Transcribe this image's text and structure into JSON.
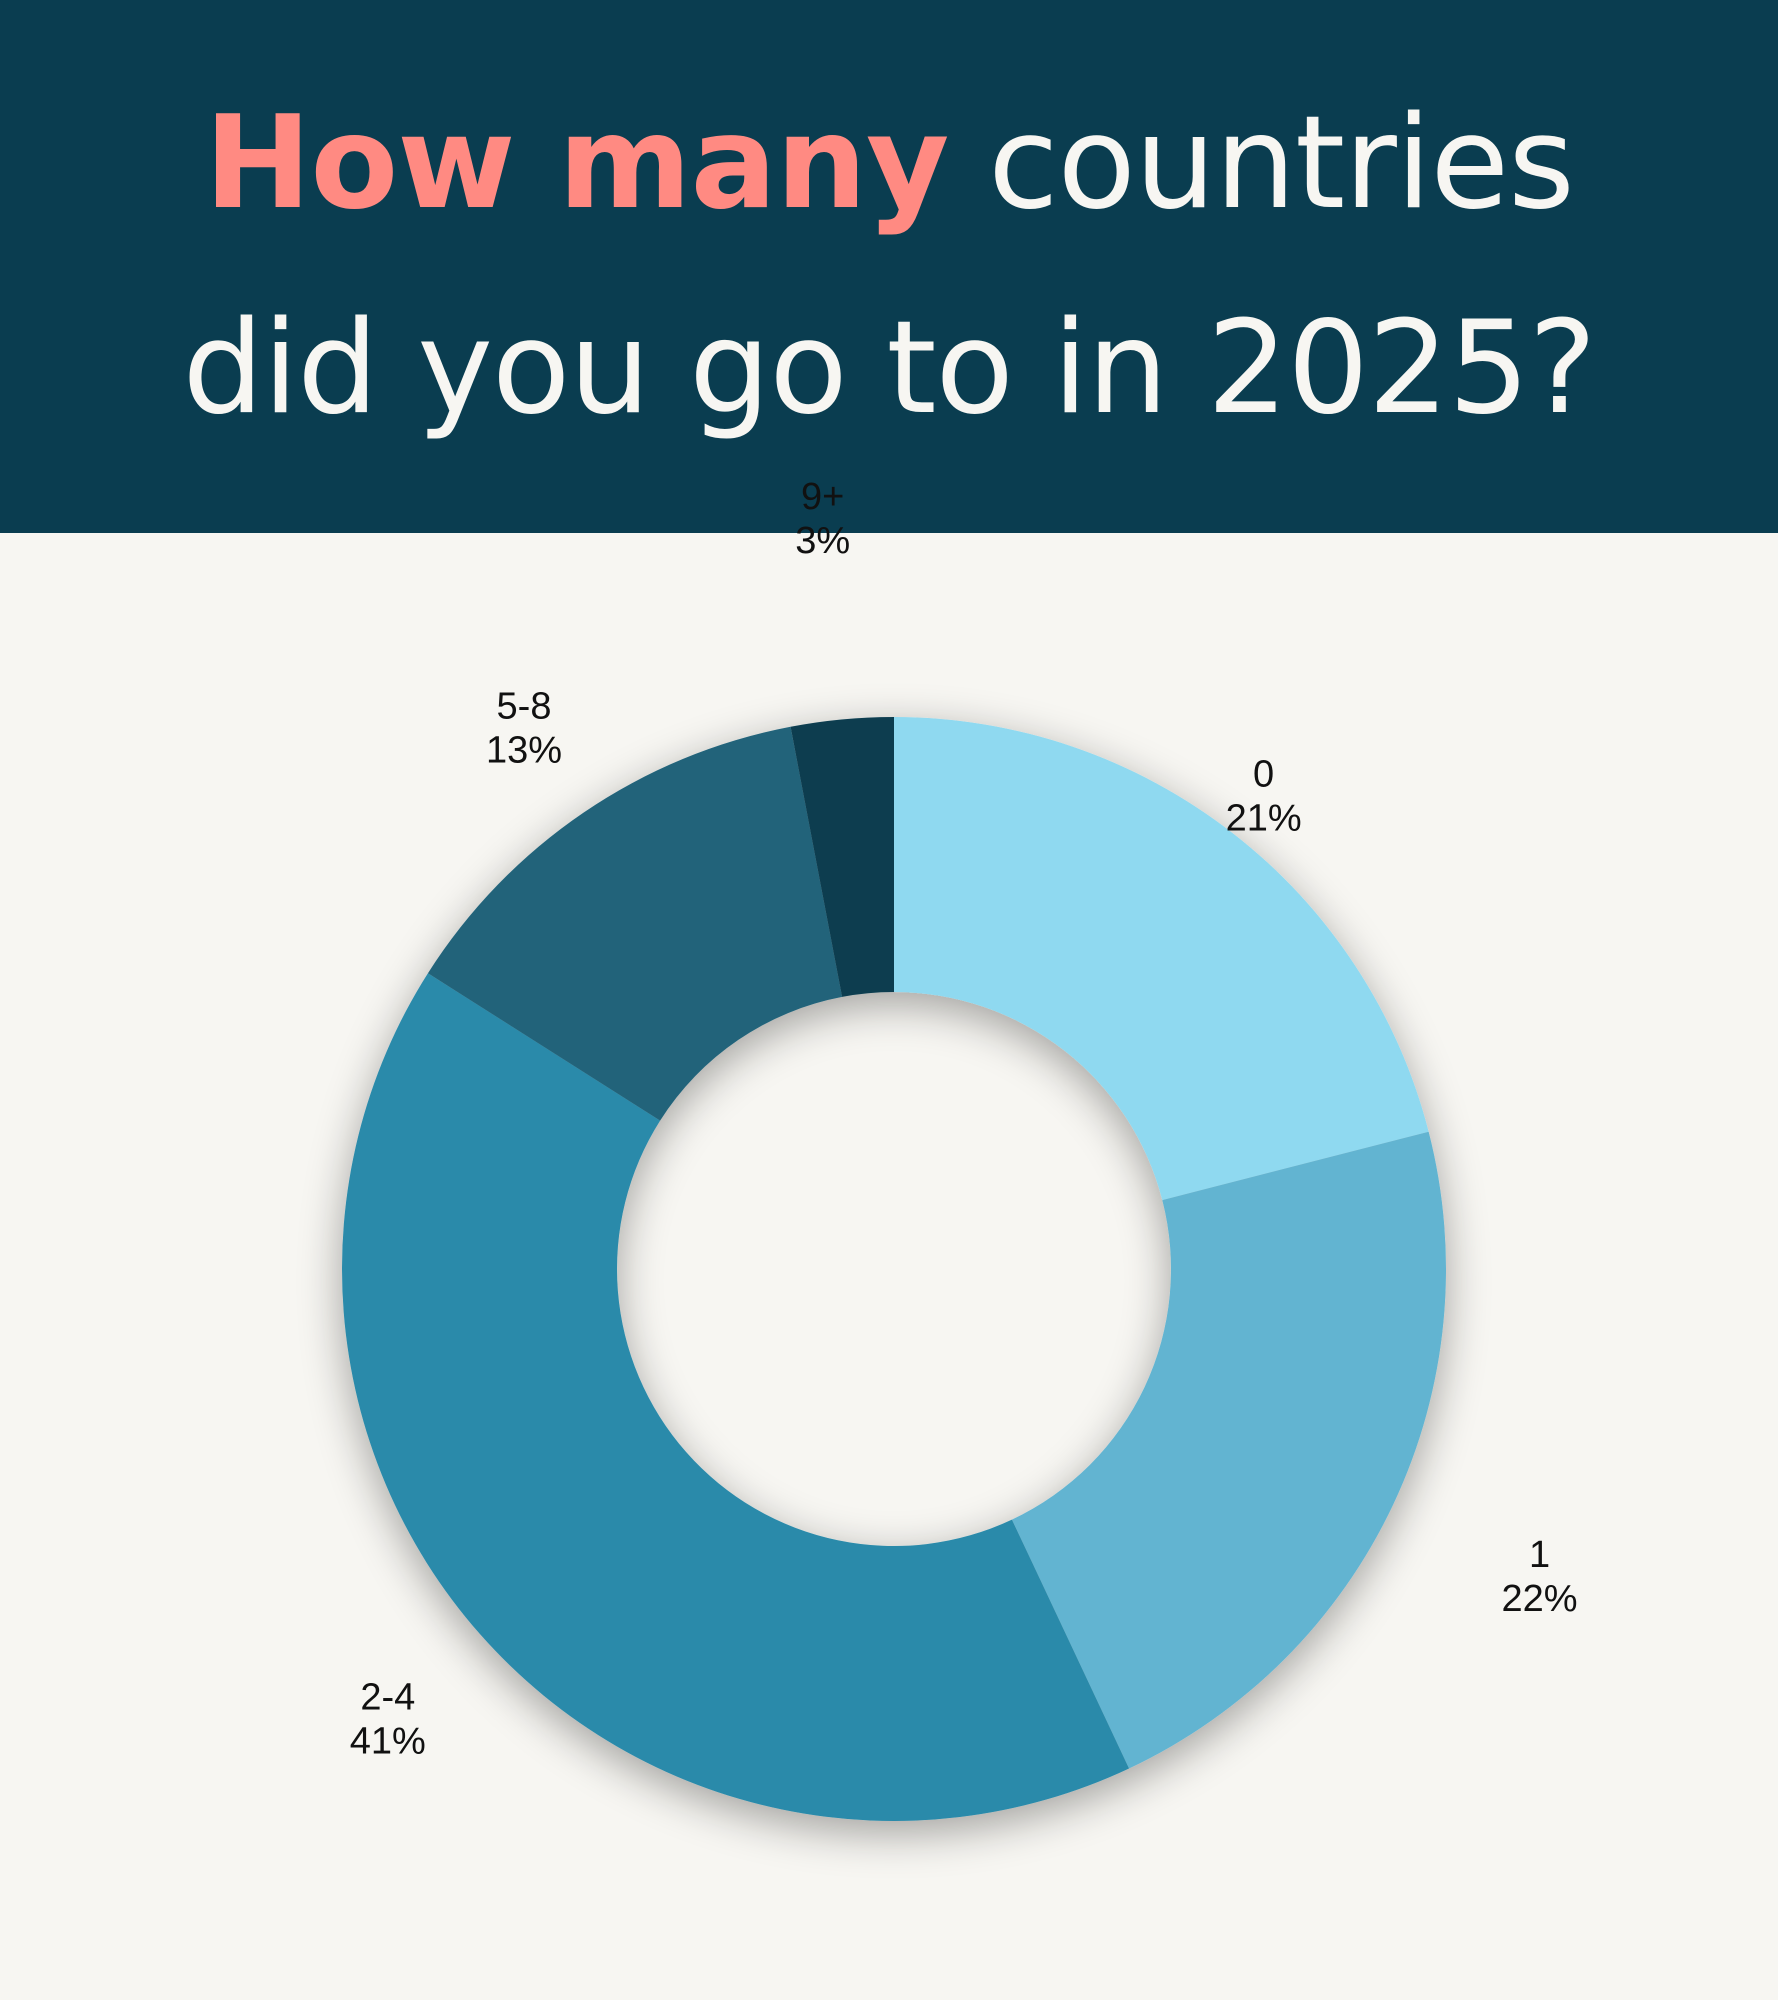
{
  "title": {
    "highlight": "How many",
    "line1_rest": " countries",
    "line2": "did you go to in 2025?"
  },
  "colors": {
    "header_bg": "#0a3d50",
    "highlight": "#ff8a82",
    "background": "#f7f6f2"
  },
  "chart_data": {
    "type": "pie",
    "donut": true,
    "start": "top, clockwise",
    "categories": [
      "0",
      "1",
      "2-4",
      "5-8",
      "9+"
    ],
    "values": [
      21,
      22,
      41,
      13,
      3
    ],
    "value_labels": [
      "21%",
      "22%",
      "41%",
      "13%",
      "3%"
    ],
    "colors": [
      "#8fd9f0",
      "#62b4d1",
      "#2a8aaa",
      "#21637a",
      "#0a3d50"
    ],
    "legend": "none"
  }
}
